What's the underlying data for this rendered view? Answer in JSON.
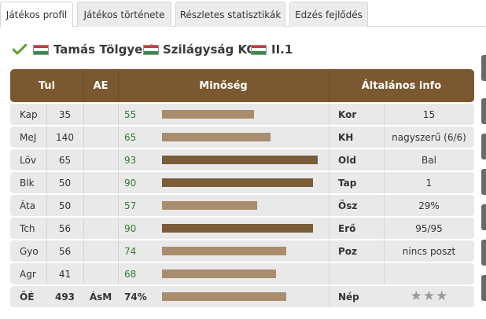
{
  "tabs": [
    {
      "label": "Játékos profil",
      "active": true
    },
    {
      "label": "Játékos története",
      "active": false
    },
    {
      "label": "Részletes statisztikák",
      "active": false
    },
    {
      "label": "Edzés fejlődés",
      "active": false
    }
  ],
  "header": {
    "player_name": "Tamás Tölgyesi",
    "club_name": "Szilágyság KC,",
    "league": "II.1"
  },
  "columns": {
    "tul": "Tul",
    "ae": "AE",
    "quality": "Minőség",
    "general": "Általános info"
  },
  "colors": {
    "header_bg": "#7a5830",
    "bar_light": "#a98d6c",
    "bar_dark": "#7a5c38",
    "quality_text": "#2f7d2f"
  },
  "rows": [
    {
      "pos": "Kap",
      "tul": "35",
      "ae": "",
      "q": "55",
      "bar": 0.55,
      "info_label": "Kor",
      "info_value": "15"
    },
    {
      "pos": "MeJ",
      "tul": "140",
      "ae": "",
      "q": "65",
      "bar": 0.65,
      "info_label": "KH",
      "info_value": "nagyszerű (6/6)"
    },
    {
      "pos": "Löv",
      "tul": "65",
      "ae": "",
      "q": "93",
      "bar": 0.93,
      "info_label": "Old",
      "info_value": "Bal"
    },
    {
      "pos": "Blk",
      "tul": "50",
      "ae": "",
      "q": "90",
      "bar": 0.9,
      "info_label": "Tap",
      "info_value": "1"
    },
    {
      "pos": "Áta",
      "tul": "50",
      "ae": "",
      "q": "57",
      "bar": 0.57,
      "info_label": "Ösz",
      "info_value": "29%"
    },
    {
      "pos": "Tch",
      "tul": "56",
      "ae": "",
      "q": "90",
      "bar": 0.9,
      "info_label": "Erő",
      "info_value": "95/95"
    },
    {
      "pos": "Gyo",
      "tul": "56",
      "ae": "",
      "q": "74",
      "bar": 0.74,
      "info_label": "Poz",
      "info_value": "nincs poszt"
    },
    {
      "pos": "Agr",
      "tul": "41",
      "ae": "",
      "q": "68",
      "bar": 0.68,
      "info_label": "",
      "info_value": ""
    }
  ],
  "summary": {
    "pos": "ÖÉ",
    "tul": "493",
    "ae": "ÁsM",
    "q": "74%",
    "bar": 0.74,
    "info_label": "Nép",
    "stars": 3
  }
}
